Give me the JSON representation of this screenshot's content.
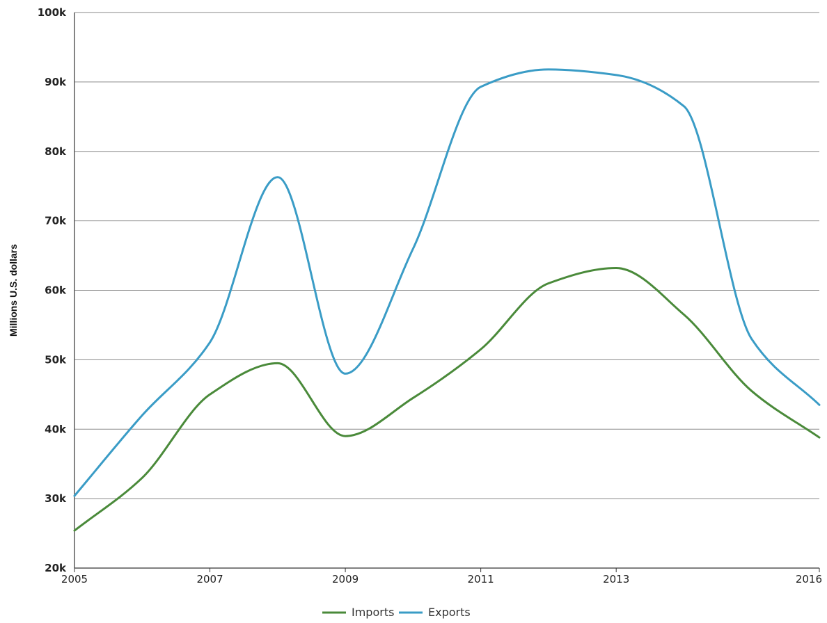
{
  "chart_data": {
    "type": "line",
    "title": "",
    "xlabel": "",
    "ylabel": "Millions U.S. dollars",
    "x": [
      2005,
      2006,
      2007,
      2008,
      2009,
      2010,
      2011,
      2012,
      2013,
      2014,
      2015,
      2016
    ],
    "xticks": [
      "2005",
      "2007",
      "2009",
      "2011",
      "2013",
      "2016"
    ],
    "ylim": [
      20000,
      100000
    ],
    "yticks": [
      "20k",
      "30k",
      "40k",
      "50k",
      "60k",
      "70k",
      "80k",
      "90k",
      "100k"
    ],
    "grid": true,
    "legend_position": "bottom-center",
    "series": [
      {
        "name": "Imports",
        "color": "#4a8a3a",
        "values": [
          25400,
          33000,
          45000,
          49500,
          39000,
          44500,
          51500,
          61000,
          63200,
          56500,
          45500,
          38800
        ]
      },
      {
        "name": "Exports",
        "color": "#3a9cc6",
        "values": [
          30400,
          42000,
          52500,
          76300,
          48000,
          66000,
          89300,
          91800,
          91000,
          86500,
          53000,
          43500
        ]
      }
    ]
  }
}
